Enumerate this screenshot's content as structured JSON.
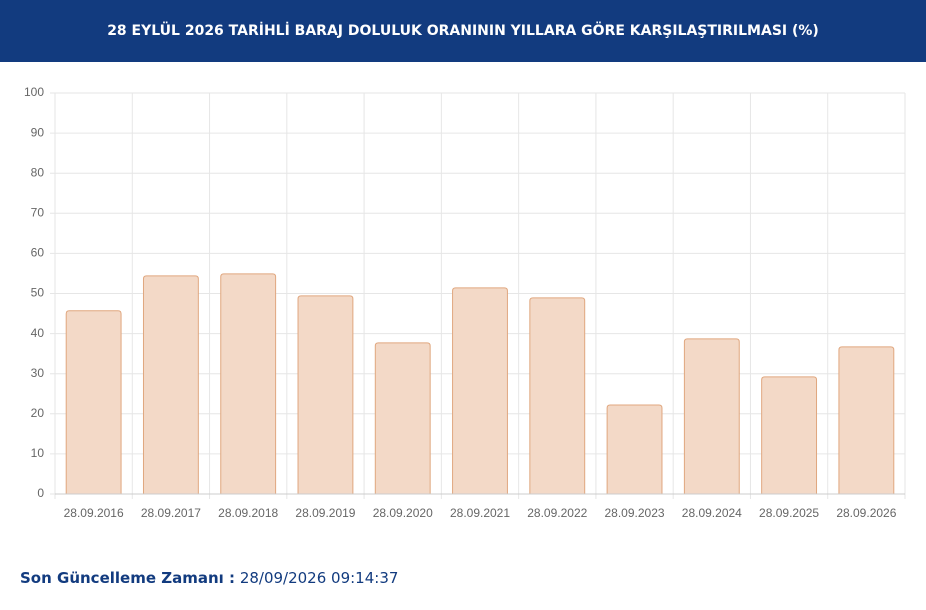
{
  "chart_data": {
    "type": "bar",
    "title": "28 EYLÜL 2026 TARİHLİ BARAJ DOLULUK ORANININ YILLARA GÖRE KARŞILAŞTIRILMASI (%)",
    "categories": [
      "28.09.2016",
      "28.09.2017",
      "28.09.2018",
      "28.09.2019",
      "28.09.2020",
      "28.09.2021",
      "28.09.2022",
      "28.09.2023",
      "28.09.2024",
      "28.09.2025",
      "28.09.2026"
    ],
    "values": [
      45.7,
      54.4,
      54.9,
      49.4,
      37.7,
      51.4,
      48.9,
      22.2,
      38.7,
      29.2,
      36.7
    ],
    "color": "#f3d9c7",
    "border_color": "#e0a77f",
    "ylim": [
      0,
      100
    ],
    "yticks": [
      0,
      10,
      20,
      30,
      40,
      50,
      60,
      70,
      80,
      90,
      100
    ],
    "grid": true
  },
  "footer": {
    "label": "Son Güncelleme Zamanı :",
    "value": "28/09/2026 09:14:37"
  }
}
